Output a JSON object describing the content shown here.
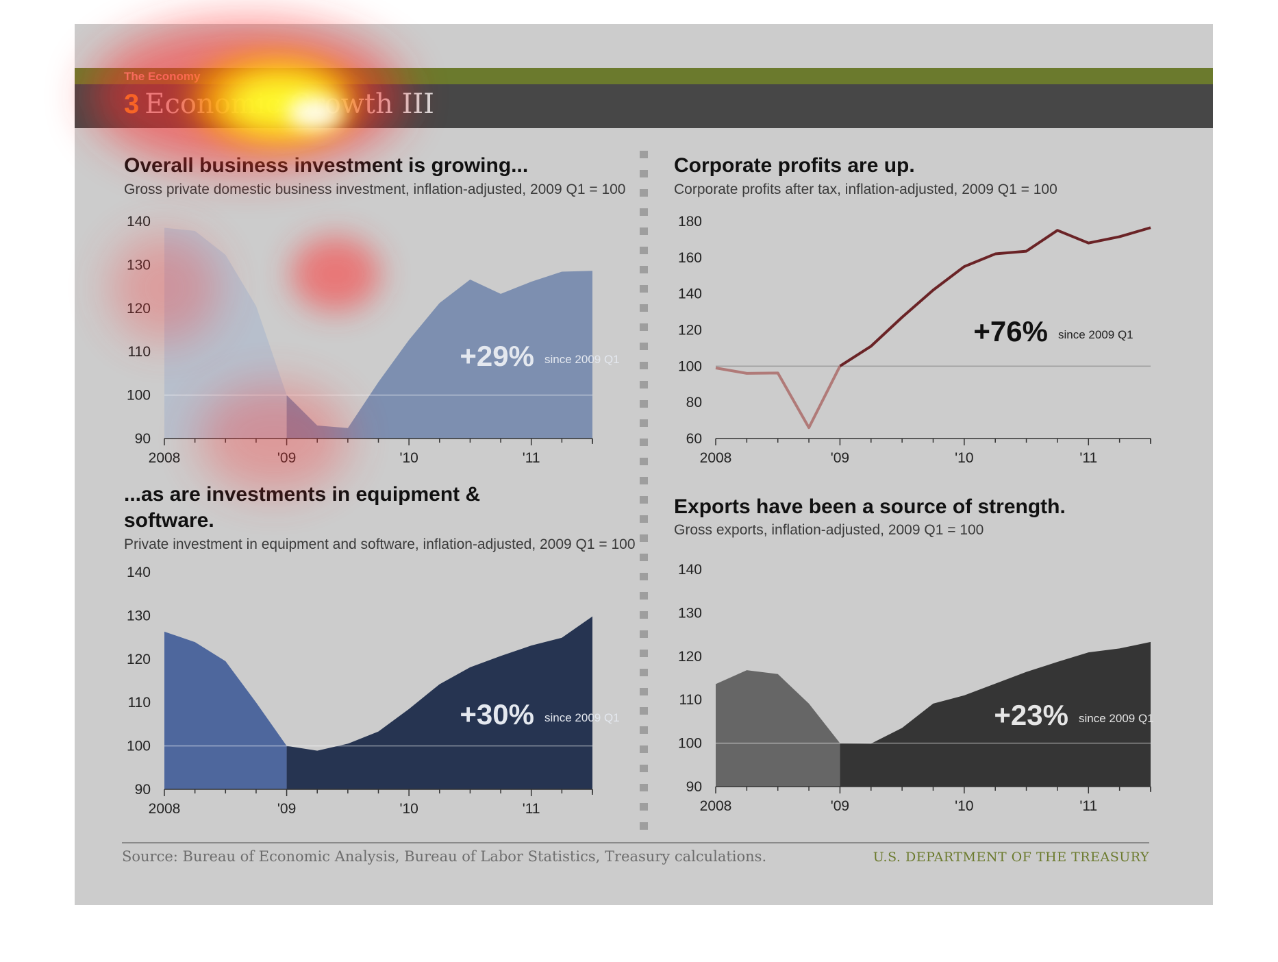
{
  "header": {
    "section_label": "The Economy",
    "section_number": "3",
    "section_title": "Economic Growth III"
  },
  "footer": {
    "source": "Source: Bureau of Economic Analysis, Bureau of Labor Statistics, Treasury calculations.",
    "department": "U.S. DEPARTMENT OF THE TREASURY"
  },
  "colors": {
    "investment_pre": "#b7bfcc",
    "investment_post": "#7d8fb0",
    "equipment_pre": "#4e679d",
    "equipment_post": "#263451",
    "profits_pre": "#b07a78",
    "profits_post": "#6a2326",
    "exports_pre": "#666666",
    "exports_post": "#353535"
  },
  "chart_data": [
    {
      "id": "investment",
      "type": "area",
      "title": "Overall business investment is growing...",
      "subtitle": "Gross private domestic business investment, inflation-adjusted, 2009 Q1 = 100",
      "x": [
        2008.0,
        2008.25,
        2008.5,
        2008.75,
        2009.0,
        2009.25,
        2009.5,
        2009.75,
        2010.0,
        2010.25,
        2010.5,
        2010.75,
        2011.0,
        2011.25,
        2011.5
      ],
      "y": [
        138.5,
        137.8,
        132.3,
        120.5,
        100,
        93,
        92.4,
        103,
        112.7,
        121.2,
        126.6,
        123.3,
        126.1,
        128.4,
        128.6
      ],
      "x_tick_labels": [
        "2008",
        "'09",
        "'10",
        "'11"
      ],
      "y_ticks": [
        90,
        100,
        110,
        120,
        130,
        140
      ],
      "ylim": [
        90,
        140
      ],
      "baseline": 100,
      "annotation": {
        "value": "+29%",
        "note": "since 2009 Q1"
      }
    },
    {
      "id": "profits",
      "type": "line",
      "title": "Corporate profits are up.",
      "subtitle": "Corporate profits after tax, inflation-adjusted, 2009 Q1 = 100",
      "x": [
        2008.0,
        2008.25,
        2008.5,
        2008.75,
        2009.0,
        2009.25,
        2009.5,
        2009.75,
        2010.0,
        2010.25,
        2010.5,
        2010.75,
        2011.0,
        2011.25,
        2011.5
      ],
      "y": [
        99,
        96,
        96.2,
        66,
        100,
        111,
        127,
        142,
        155,
        162,
        163.5,
        175,
        168,
        171.5,
        176.5
      ],
      "x_tick_labels": [
        "2008",
        "'09",
        "'10",
        "'11"
      ],
      "y_ticks": [
        60,
        80,
        100,
        120,
        140,
        160,
        180
      ],
      "ylim": [
        60,
        180
      ],
      "baseline": 100,
      "annotation": {
        "value": "+76%",
        "note": "since 2009 Q1"
      }
    },
    {
      "id": "equipment",
      "type": "area",
      "title": "...as are investments in equipment & software.",
      "subtitle": "Private investment in equipment and software, inflation-adjusted, 2009 Q1 = 100",
      "x": [
        2008.0,
        2008.25,
        2008.5,
        2008.75,
        2009.0,
        2009.25,
        2009.5,
        2009.75,
        2010.0,
        2010.25,
        2010.5,
        2010.75,
        2011.0,
        2011.25,
        2011.5
      ],
      "y": [
        126.3,
        123.9,
        119.5,
        110,
        100,
        98.9,
        100.5,
        103.3,
        108.5,
        114.2,
        118.1,
        120.7,
        123.1,
        124.9,
        129.8
      ],
      "x_tick_labels": [
        "2008",
        "'09",
        "'10",
        "'11"
      ],
      "y_ticks": [
        90,
        100,
        110,
        120,
        130,
        140
      ],
      "ylim": [
        90,
        140
      ],
      "baseline": 100,
      "annotation": {
        "value": "+30%",
        "note": "since 2009 Q1"
      }
    },
    {
      "id": "exports",
      "type": "area",
      "title": "Exports have been a source of strength.",
      "subtitle": "Gross exports, inflation-adjusted, 2009 Q1 = 100",
      "x": [
        2008.0,
        2008.25,
        2008.5,
        2008.75,
        2009.0,
        2009.25,
        2009.5,
        2009.75,
        2010.0,
        2010.25,
        2010.5,
        2010.75,
        2011.0,
        2011.25,
        2011.5
      ],
      "y": [
        113.6,
        116.8,
        115.9,
        109.1,
        100,
        99.9,
        103.5,
        109.1,
        111,
        113.7,
        116.4,
        118.7,
        120.9,
        121.8,
        123.3
      ],
      "x_tick_labels": [
        "2008",
        "'09",
        "'10",
        "'11"
      ],
      "y_ticks": [
        90,
        100,
        110,
        120,
        130,
        140
      ],
      "ylim": [
        90,
        140
      ],
      "baseline": 100,
      "annotation": {
        "value": "+23%",
        "note": "since 2009 Q1"
      }
    }
  ]
}
